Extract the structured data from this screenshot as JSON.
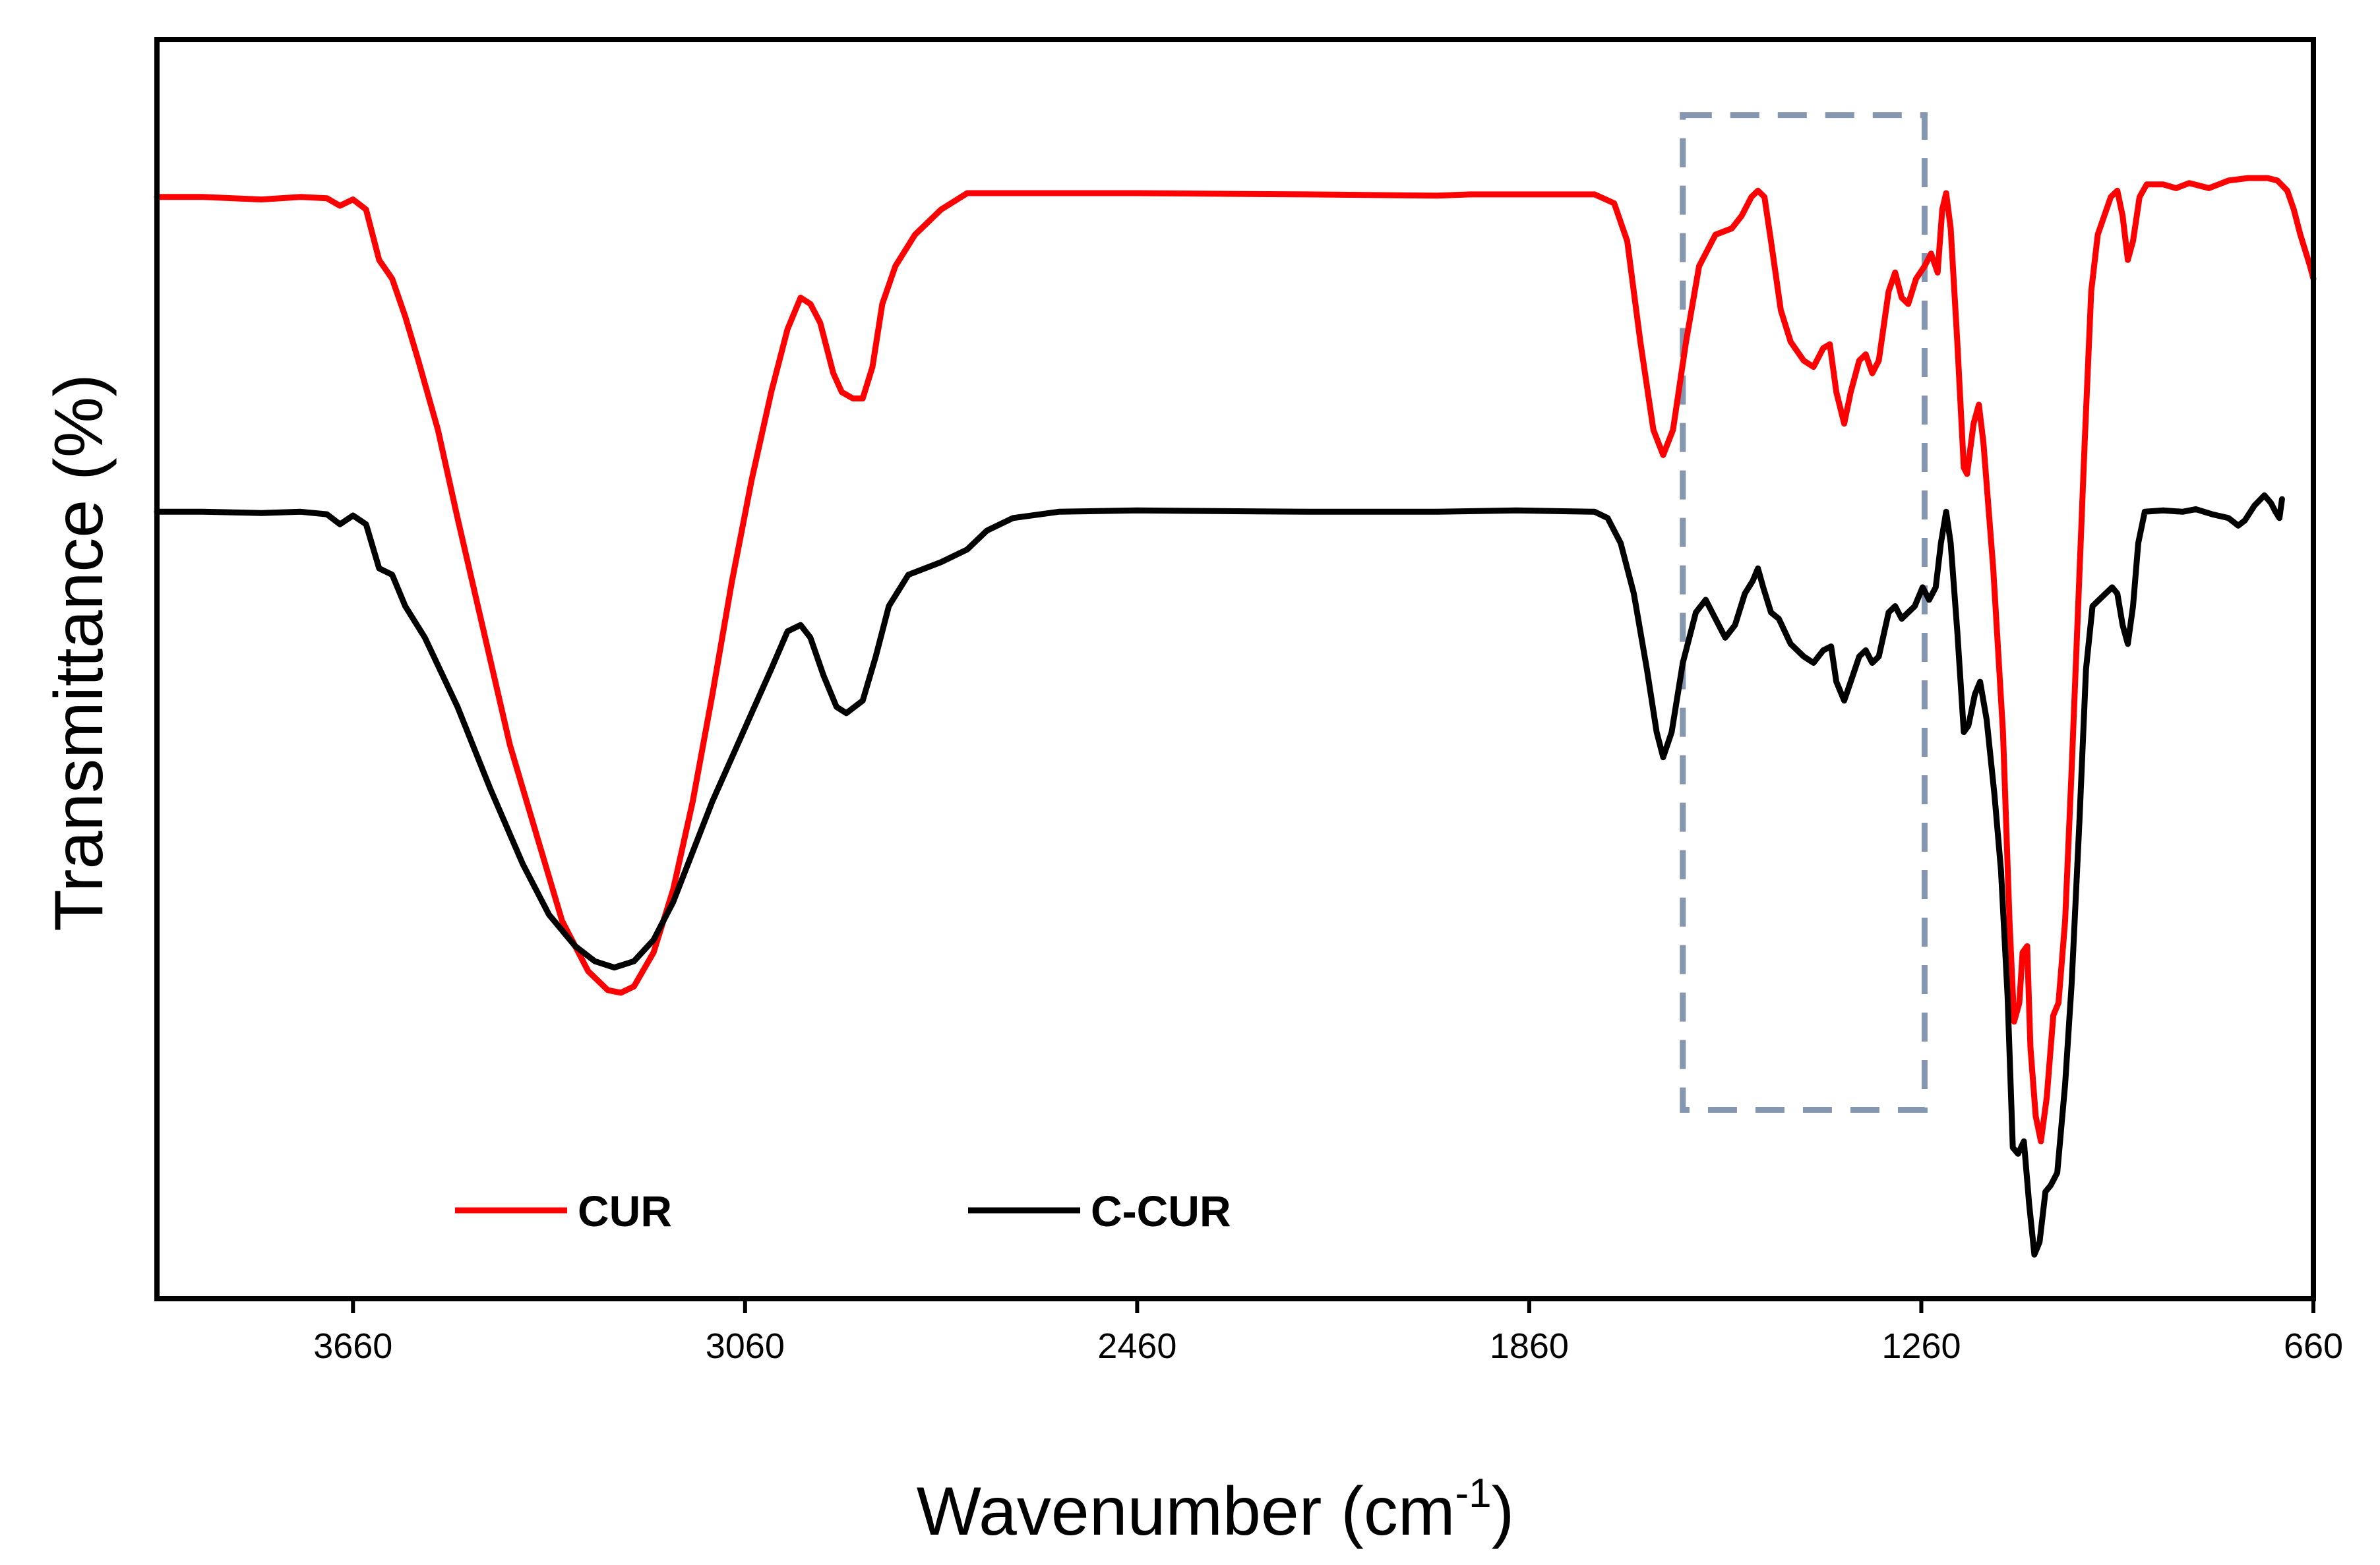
{
  "chart_data": {
    "type": "line",
    "title": "",
    "xlabel": "Wavenumber (cm",
    "xlabel_superscript": "-1",
    "xlabel_suffix": ")",
    "ylabel": "Transmittance (%)",
    "xlim": [
      3960,
      660
    ],
    "ylim": [
      0,
      100
    ],
    "x_reversed": true,
    "y_tick_labels_shown": false,
    "grid": false,
    "x_ticks": [
      3660,
      3060,
      2460,
      1860,
      1260,
      660
    ],
    "x_tick_labels": [
      "3660",
      "3060",
      "2460",
      "1860",
      "1260",
      "660"
    ],
    "legend": {
      "placement": "bottom-left",
      "entries": [
        {
          "name": "CUR",
          "color": "#ff0000"
        },
        {
          "name": "C-CUR",
          "color": "#000000"
        }
      ]
    },
    "highlight_region": {
      "x_range": [
        1625,
        1255
      ],
      "y_range": [
        15,
        94
      ],
      "style": "dashed",
      "color": "#8496b0"
    },
    "series": [
      {
        "name": "CUR",
        "color": "#ff0000",
        "points": [
          [
            3960,
            87.5
          ],
          [
            3890,
            87.5
          ],
          [
            3800,
            87.3
          ],
          [
            3740,
            87.5
          ],
          [
            3700,
            87.4
          ],
          [
            3680,
            86.8
          ],
          [
            3660,
            87.3
          ],
          [
            3640,
            86.5
          ],
          [
            3620,
            82.5
          ],
          [
            3600,
            81.0
          ],
          [
            3580,
            78.0
          ],
          [
            3560,
            74.5
          ],
          [
            3530,
            69.0
          ],
          [
            3500,
            62.0
          ],
          [
            3460,
            53.0
          ],
          [
            3420,
            44.0
          ],
          [
            3380,
            37.0
          ],
          [
            3340,
            30.0
          ],
          [
            3300,
            26.0
          ],
          [
            3270,
            24.5
          ],
          [
            3250,
            24.3
          ],
          [
            3230,
            24.8
          ],
          [
            3200,
            27.5
          ],
          [
            3170,
            32.5
          ],
          [
            3140,
            39.5
          ],
          [
            3110,
            48.0
          ],
          [
            3080,
            57.0
          ],
          [
            3050,
            65.0
          ],
          [
            3020,
            72.0
          ],
          [
            2995,
            77.0
          ],
          [
            2975,
            79.5
          ],
          [
            2960,
            79.0
          ],
          [
            2945,
            77.5
          ],
          [
            2925,
            73.5
          ],
          [
            2912,
            72.0
          ],
          [
            2895,
            71.5
          ],
          [
            2880,
            71.5
          ],
          [
            2865,
            74.0
          ],
          [
            2850,
            79.0
          ],
          [
            2830,
            82.0
          ],
          [
            2800,
            84.5
          ],
          [
            2760,
            86.5
          ],
          [
            2720,
            87.8
          ],
          [
            2700,
            87.8
          ],
          [
            2650,
            87.8
          ],
          [
            2460,
            87.8
          ],
          [
            2200,
            87.7
          ],
          [
            2000,
            87.6
          ],
          [
            1950,
            87.7
          ],
          [
            1880,
            87.7
          ],
          [
            1760,
            87.7
          ],
          [
            1730,
            87.0
          ],
          [
            1710,
            84.0
          ],
          [
            1690,
            76.0
          ],
          [
            1670,
            69.0
          ],
          [
            1655,
            67.0
          ],
          [
            1640,
            69.0
          ],
          [
            1620,
            76.0
          ],
          [
            1600,
            82.0
          ],
          [
            1575,
            84.5
          ],
          [
            1550,
            85.0
          ],
          [
            1535,
            86.0
          ],
          [
            1520,
            87.5
          ],
          [
            1510,
            88.0
          ],
          [
            1500,
            87.5
          ],
          [
            1490,
            84.0
          ],
          [
            1475,
            78.5
          ],
          [
            1460,
            76.0
          ],
          [
            1440,
            74.5
          ],
          [
            1425,
            74.0
          ],
          [
            1410,
            75.5
          ],
          [
            1400,
            75.8
          ],
          [
            1390,
            72.0
          ],
          [
            1378,
            69.5
          ],
          [
            1368,
            72.0
          ],
          [
            1355,
            74.5
          ],
          [
            1345,
            75.0
          ],
          [
            1335,
            73.5
          ],
          [
            1325,
            74.5
          ],
          [
            1310,
            80.0
          ],
          [
            1300,
            81.5
          ],
          [
            1290,
            79.5
          ],
          [
            1280,
            79.0
          ],
          [
            1268,
            81.0
          ],
          [
            1255,
            82.0
          ],
          [
            1245,
            83.0
          ],
          [
            1235,
            81.5
          ],
          [
            1228,
            86.5
          ],
          [
            1222,
            87.8
          ],
          [
            1215,
            85.0
          ],
          [
            1205,
            76.0
          ],
          [
            1195,
            66.0
          ],
          [
            1190,
            65.5
          ],
          [
            1180,
            69.5
          ],
          [
            1172,
            71.0
          ],
          [
            1165,
            68.0
          ],
          [
            1150,
            58.0
          ],
          [
            1135,
            45.0
          ],
          [
            1125,
            30.0
          ],
          [
            1118,
            22.0
          ],
          [
            1110,
            23.5
          ],
          [
            1105,
            27.5
          ],
          [
            1098,
            28.0
          ],
          [
            1093,
            20.0
          ],
          [
            1085,
            14.5
          ],
          [
            1077,
            12.5
          ],
          [
            1068,
            16.0
          ],
          [
            1058,
            22.5
          ],
          [
            1050,
            23.5
          ],
          [
            1040,
            30.0
          ],
          [
            1030,
            42.0
          ],
          [
            1020,
            55.0
          ],
          [
            1010,
            68.0
          ],
          [
            1000,
            80.0
          ],
          [
            990,
            84.5
          ],
          [
            980,
            86.0
          ],
          [
            970,
            87.5
          ],
          [
            960,
            88.0
          ],
          [
            952,
            86.0
          ],
          [
            944,
            82.5
          ],
          [
            936,
            84.0
          ],
          [
            926,
            87.5
          ],
          [
            915,
            88.5
          ],
          [
            890,
            88.5
          ],
          [
            870,
            88.2
          ],
          [
            850,
            88.6
          ],
          [
            820,
            88.2
          ],
          [
            790,
            88.8
          ],
          [
            760,
            89.0
          ],
          [
            730,
            89.0
          ],
          [
            715,
            88.8
          ],
          [
            700,
            88.0
          ],
          [
            690,
            86.5
          ],
          [
            680,
            84.5
          ],
          [
            665,
            82.0
          ],
          [
            660,
            81.0
          ]
        ]
      },
      {
        "name": "C-CUR",
        "color": "#000000",
        "points": [
          [
            3960,
            62.5
          ],
          [
            3890,
            62.5
          ],
          [
            3800,
            62.4
          ],
          [
            3740,
            62.5
          ],
          [
            3700,
            62.3
          ],
          [
            3680,
            61.5
          ],
          [
            3660,
            62.2
          ],
          [
            3640,
            61.5
          ],
          [
            3620,
            58.0
          ],
          [
            3600,
            57.5
          ],
          [
            3580,
            55.0
          ],
          [
            3550,
            52.5
          ],
          [
            3500,
            47.0
          ],
          [
            3450,
            40.5
          ],
          [
            3400,
            34.5
          ],
          [
            3360,
            30.5
          ],
          [
            3320,
            28.0
          ],
          [
            3290,
            26.8
          ],
          [
            3260,
            26.3
          ],
          [
            3230,
            26.8
          ],
          [
            3200,
            28.5
          ],
          [
            3170,
            31.5
          ],
          [
            3140,
            35.5
          ],
          [
            3110,
            39.5
          ],
          [
            3080,
            43.0
          ],
          [
            3050,
            46.5
          ],
          [
            3020,
            50.0
          ],
          [
            2995,
            53.0
          ],
          [
            2975,
            53.5
          ],
          [
            2960,
            52.5
          ],
          [
            2940,
            49.5
          ],
          [
            2920,
            47.0
          ],
          [
            2905,
            46.5
          ],
          [
            2880,
            47.5
          ],
          [
            2860,
            51.0
          ],
          [
            2840,
            55.0
          ],
          [
            2810,
            57.5
          ],
          [
            2760,
            58.5
          ],
          [
            2720,
            59.5
          ],
          [
            2690,
            61.0
          ],
          [
            2650,
            62.0
          ],
          [
            2580,
            62.5
          ],
          [
            2460,
            62.6
          ],
          [
            2200,
            62.5
          ],
          [
            2000,
            62.5
          ],
          [
            1880,
            62.6
          ],
          [
            1760,
            62.5
          ],
          [
            1740,
            62.0
          ],
          [
            1720,
            60.0
          ],
          [
            1700,
            56.0
          ],
          [
            1680,
            50.0
          ],
          [
            1665,
            45.0
          ],
          [
            1655,
            43.0
          ],
          [
            1642,
            45.0
          ],
          [
            1625,
            50.5
          ],
          [
            1605,
            54.5
          ],
          [
            1590,
            55.5
          ],
          [
            1575,
            54.0
          ],
          [
            1560,
            52.5
          ],
          [
            1545,
            53.5
          ],
          [
            1530,
            56.0
          ],
          [
            1518,
            57.0
          ],
          [
            1510,
            58.0
          ],
          [
            1502,
            56.5
          ],
          [
            1490,
            54.5
          ],
          [
            1478,
            54.0
          ],
          [
            1460,
            52.0
          ],
          [
            1440,
            51.0
          ],
          [
            1425,
            50.5
          ],
          [
            1410,
            51.5
          ],
          [
            1398,
            51.8
          ],
          [
            1390,
            49.0
          ],
          [
            1378,
            47.5
          ],
          [
            1368,
            49.0
          ],
          [
            1355,
            51.0
          ],
          [
            1345,
            51.5
          ],
          [
            1335,
            50.5
          ],
          [
            1325,
            51.0
          ],
          [
            1310,
            54.5
          ],
          [
            1300,
            55.0
          ],
          [
            1290,
            54.0
          ],
          [
            1280,
            54.5
          ],
          [
            1270,
            55.0
          ],
          [
            1258,
            56.5
          ],
          [
            1248,
            55.5
          ],
          [
            1238,
            56.5
          ],
          [
            1230,
            60.0
          ],
          [
            1222,
            62.5
          ],
          [
            1215,
            60.0
          ],
          [
            1205,
            53.0
          ],
          [
            1195,
            45.0
          ],
          [
            1188,
            45.5
          ],
          [
            1178,
            48.0
          ],
          [
            1170,
            49.0
          ],
          [
            1160,
            46.0
          ],
          [
            1148,
            40.0
          ],
          [
            1138,
            34.0
          ],
          [
            1128,
            24.0
          ],
          [
            1120,
            12.0
          ],
          [
            1112,
            11.5
          ],
          [
            1103,
            12.5
          ],
          [
            1095,
            7.5
          ],
          [
            1087,
            3.5
          ],
          [
            1079,
            4.5
          ],
          [
            1070,
            8.5
          ],
          [
            1062,
            9.0
          ],
          [
            1052,
            10.0
          ],
          [
            1040,
            17.0
          ],
          [
            1030,
            25.0
          ],
          [
            1018,
            38.0
          ],
          [
            1008,
            50.0
          ],
          [
            998,
            55.0
          ],
          [
            988,
            55.5
          ],
          [
            978,
            56.0
          ],
          [
            968,
            56.5
          ],
          [
            960,
            56.0
          ],
          [
            952,
            53.5
          ],
          [
            944,
            52.0
          ],
          [
            936,
            55.0
          ],
          [
            928,
            60.0
          ],
          [
            918,
            62.5
          ],
          [
            890,
            62.6
          ],
          [
            860,
            62.5
          ],
          [
            840,
            62.7
          ],
          [
            815,
            62.3
          ],
          [
            790,
            62.0
          ],
          [
            775,
            61.4
          ],
          [
            765,
            61.8
          ],
          [
            750,
            63.0
          ],
          [
            735,
            63.8
          ],
          [
            725,
            63.2
          ],
          [
            718,
            62.5
          ],
          [
            712,
            62.0
          ],
          [
            708,
            63.5
          ]
        ]
      }
    ]
  }
}
